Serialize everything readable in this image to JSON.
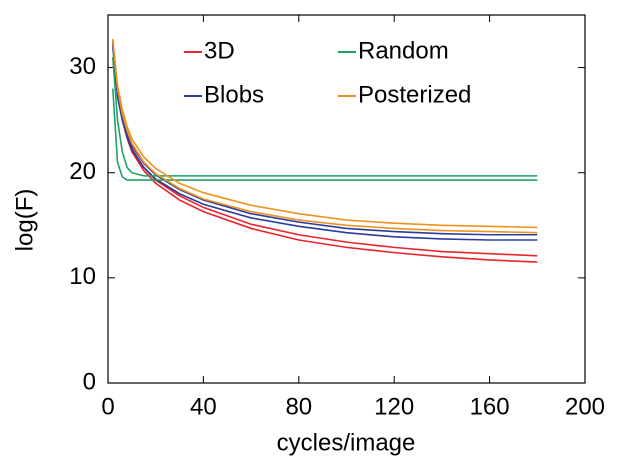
{
  "chart_data": {
    "type": "line",
    "x_label": "cycles/image",
    "y_label": "log(F)",
    "x": [
      2,
      4,
      6,
      8,
      10,
      15,
      20,
      30,
      40,
      60,
      80,
      100,
      120,
      140,
      160,
      180
    ],
    "series": [
      {
        "name": "3D",
        "color": "#e8252b",
        "values": [
          32.5,
          27.5,
          25,
          23.3,
          22,
          20.2,
          19,
          17.4,
          16.3,
          14.7,
          13.6,
          12.9,
          12.4,
          12.0,
          11.7,
          11.5
        ]
      },
      {
        "color": "#e8252b",
        "values": [
          32.5,
          27.8,
          25.3,
          23.6,
          22.3,
          20.5,
          19.3,
          17.8,
          16.7,
          15.1,
          14.1,
          13.4,
          12.9,
          12.5,
          12.3,
          12.1
        ]
      },
      {
        "name": "Blobs",
        "color": "#2b3d9b",
        "values": [
          32,
          27.2,
          25,
          23.4,
          22.2,
          20.5,
          19.4,
          18,
          17,
          15.7,
          14.9,
          14.3,
          13.9,
          13.7,
          13.6,
          13.6
        ]
      },
      {
        "color": "#2b3d9b",
        "values": [
          32.3,
          27.7,
          25.4,
          23.8,
          22.6,
          20.9,
          19.8,
          18.4,
          17.4,
          16.1,
          15.3,
          14.7,
          14.4,
          14.2,
          14.1,
          14.1
        ]
      },
      {
        "name": "Random",
        "color": "#1fa066",
        "values": [
          28,
          21,
          19.6,
          19.3,
          19.3,
          19.3,
          19.3,
          19.3,
          19.3,
          19.3,
          19.3,
          19.3,
          19.3,
          19.3,
          19.3,
          19.3
        ]
      },
      {
        "color": "#1fa066",
        "values": [
          31,
          25,
          22,
          20.5,
          20,
          19.7,
          19.7,
          19.7,
          19.7,
          19.7,
          19.7,
          19.7,
          19.7,
          19.7,
          19.7,
          19.7
        ]
      },
      {
        "name": "Posterized",
        "color": "#f0921e",
        "values": [
          32.7,
          28,
          25.6,
          24,
          22.8,
          21,
          19.9,
          18.5,
          17.5,
          16.3,
          15.5,
          15,
          14.7,
          14.5,
          14.4,
          14.3
        ]
      },
      {
        "color": "#f0921e",
        "values": [
          32.7,
          28.3,
          26,
          24.4,
          23.2,
          21.5,
          20.4,
          19,
          18.1,
          16.9,
          16.1,
          15.5,
          15.2,
          15,
          14.9,
          14.8
        ]
      }
    ],
    "xlim": [
      0,
      200
    ],
    "xticks": [
      0,
      40,
      80,
      120,
      160,
      200
    ],
    "ylim": [
      0,
      35
    ],
    "yticks": [
      0,
      10,
      20,
      30
    ],
    "grid": false
  }
}
